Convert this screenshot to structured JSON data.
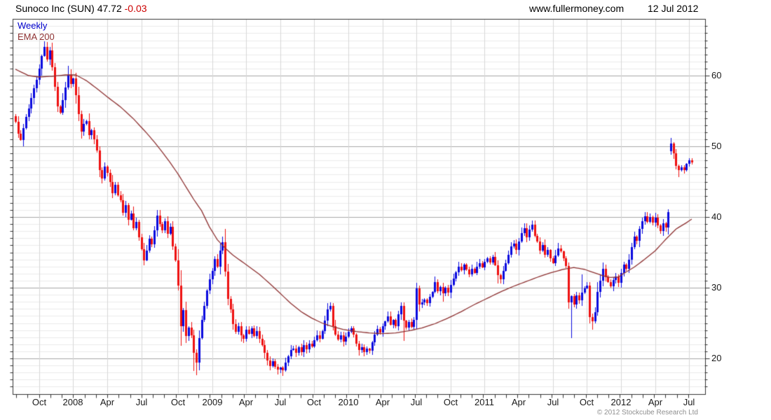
{
  "header": {
    "title": "Sunoco Inc (SUN) 47.72",
    "change": "-0.03",
    "website": "www.fullermoney.com",
    "date": "12 Jul 2012"
  },
  "legend": {
    "timeframe": "Weekly",
    "overlay": "EMA 200"
  },
  "footer": {
    "copyright": "© 2012 Stockcube Research Ltd"
  },
  "chart_data": {
    "type": "candlestick",
    "title": "Sunoco Inc (SUN) weekly candles with 200-period EMA",
    "instrument": "Sunoco Inc (SUN)",
    "interval": "weekly",
    "last_price": 47.72,
    "last_change": -0.03,
    "x_axis": {
      "start_week": "week of 30 Jul 2007",
      "weeks_total": 259,
      "labels": [
        "Oct",
        "2008",
        "Apr",
        "Jul",
        "Oct",
        "2009",
        "Apr",
        "Jul",
        "Oct",
        "2010",
        "Apr",
        "Jul",
        "Oct",
        "2011",
        "Apr",
        "Jul",
        "Oct",
        "2012",
        "Apr",
        "Jul"
      ],
      "label_week_indices": [
        9,
        22,
        35,
        48,
        62,
        75,
        88,
        101,
        114,
        127,
        140,
        153,
        166,
        179,
        192,
        205,
        218,
        231,
        244,
        257
      ]
    },
    "y_axis": {
      "ticks": [
        20,
        30,
        40,
        50,
        60
      ],
      "minor_tick_step": 1,
      "ylim": [
        15,
        68
      ],
      "side": "right",
      "grid": true
    },
    "series": {
      "name": "SUN weekly close",
      "first_open": 54.3,
      "closes": [
        53.5,
        51.8,
        50.9,
        52.6,
        54.2,
        55.3,
        56.8,
        58.2,
        59.4,
        61.0,
        62.8,
        64.1,
        62.3,
        63.6,
        61.2,
        58.4,
        55.6,
        54.8,
        56.5,
        58.3,
        60.1,
        58.8,
        59.6,
        57.2,
        54.6,
        52.1,
        53.2,
        53.6,
        51.6,
        52.3,
        51.0,
        49.4,
        46.6,
        45.4,
        47.1,
        46.2,
        45.0,
        43.4,
        44.6,
        43.1,
        42.4,
        40.6,
        41.7,
        39.6,
        40.5,
        38.4,
        39.3,
        37.1,
        35.4,
        33.9,
        35.2,
        36.9,
        36.1,
        38.1,
        40.2,
        39.0,
        38.1,
        39.4,
        37.6,
        38.6,
        35.8,
        33.9,
        30.3,
        24.6,
        26.8,
        23.2,
        24.4,
        23.3,
        20.8,
        19.4,
        22.9,
        25.4,
        27.4,
        29.6,
        31.2,
        32.4,
        34.1,
        33.0,
        35.2,
        36.4,
        32.3,
        28.4,
        26.9,
        24.9,
        23.8,
        24.6,
        23.3,
        22.8,
        24.1,
        23.5,
        24.3,
        23.2,
        23.9,
        22.8,
        21.9,
        20.8,
        19.7,
        18.9,
        19.6,
        18.8,
        18.4,
        18.7,
        18.3,
        19.4,
        20.3,
        21.2,
        21.4,
        20.8,
        21.6,
        20.9,
        21.9,
        21.3,
        22.1,
        21.7,
        22.6,
        23.3,
        22.8,
        23.9,
        25.3,
        26.9,
        27.4,
        24.6,
        23.4,
        22.7,
        23.3,
        22.4,
        23.1,
        23.8,
        24.3,
        23.4,
        22.1,
        21.2,
        21.6,
        20.9,
        21.4,
        21.1,
        22.3,
        23.4,
        24.2,
        23.7,
        24.6,
        25.2,
        25.9,
        24.8,
        25.4,
        24.6,
        26.2,
        27.4,
        25.3,
        24.4,
        25.1,
        24.5,
        25.4,
        29.9,
        27.6,
        27.9,
        28.3,
        27.8,
        28.7,
        29.4,
        30.8,
        29.5,
        30.1,
        29.2,
        30.0,
        29.3,
        30.4,
        31.3,
        32.2,
        33.0,
        32.5,
        33.3,
        32.6,
        31.9,
        32.7,
        32.1,
        33.0,
        33.5,
        32.9,
        33.7,
        34.2,
        33.6,
        34.4,
        33.2,
        31.8,
        31.2,
        32.4,
        33.5,
        34.7,
        35.8,
        36.2,
        35.3,
        36.5,
        37.7,
        38.4,
        37.1,
        38.2,
        38.9,
        37.3,
        36.5,
        35.2,
        36.0,
        34.7,
        35.3,
        34.2,
        33.5,
        34.6,
        35.5,
        35.1,
        34.2,
        33.1,
        27.9,
        28.8,
        27.6,
        28.9,
        28.2,
        29.3,
        29.9,
        30.3,
        25.8,
        25.2,
        26.5,
        29.4,
        31.0,
        32.7,
        31.5,
        30.8,
        30.2,
        31.1,
        31.6,
        30.7,
        32.1,
        33.3,
        32.7,
        34.0,
        35.7,
        37.2,
        36.6,
        38.3,
        39.4,
        40.1,
        39.3,
        40.0,
        39.2,
        39.9,
        38.8,
        38.0,
        39.1,
        38.5,
        40.7,
        50.4,
        49.0,
        47.2,
        46.6,
        47.0,
        46.6,
        47.5,
        48.0,
        47.72
      ],
      "overrides": {
        "11": {
          "h": 64.9
        },
        "20": {
          "h": 61.4
        },
        "54": {
          "h": 41.0
        },
        "63": {
          "l": 21.8
        },
        "68": {
          "l": 18.2
        },
        "69": {
          "l": 17.6
        },
        "79": {
          "h": 37.2
        },
        "80": {
          "h": 38.3
        },
        "86": {
          "l": 22.4
        },
        "97": {
          "l": 18.3
        },
        "100": {
          "l": 17.7
        },
        "102": {
          "l": 17.5
        },
        "120": {
          "h": 27.9
        },
        "131": {
          "l": 20.4
        },
        "142": {
          "h": 26.6
        },
        "147": {
          "h": 27.9
        },
        "148": {
          "l": 22.5
        },
        "153": {
          "h": 30.7
        },
        "160": {
          "h": 31.6
        },
        "163": {
          "l": 28.0
        },
        "184": {
          "l": 30.6
        },
        "190": {
          "h": 36.7
        },
        "194": {
          "h": 39.1
        },
        "197": {
          "h": 39.5
        },
        "207": {
          "h": 36.3
        },
        "211": {
          "l": 27.0
        },
        "212": {
          "l": 22.9
        },
        "216": {
          "h": 31.9
        },
        "219": {
          "l": 25.0
        },
        "220": {
          "l": 24.1
        },
        "224": {
          "h": 33.6
        },
        "250": {
          "o": 49.3,
          "h": 51.2,
          "l": 48.8
        },
        "253": {
          "l": 45.6
        },
        "258": {
          "h": 48.3,
          "l": 47.4
        }
      }
    },
    "ema": {
      "label": "EMA 200",
      "anchors": [
        [
          0,
          60.9
        ],
        [
          5,
          60.0
        ],
        [
          9,
          59.8
        ],
        [
          14,
          59.9
        ],
        [
          19,
          60.1
        ],
        [
          23,
          60.1
        ],
        [
          27,
          59.3
        ],
        [
          31,
          58.2
        ],
        [
          35,
          57.0
        ],
        [
          40,
          55.6
        ],
        [
          45,
          53.9
        ],
        [
          50,
          51.9
        ],
        [
          53,
          50.6
        ],
        [
          56,
          49.2
        ],
        [
          59,
          47.7
        ],
        [
          62,
          46.1
        ],
        [
          65,
          44.3
        ],
        [
          68,
          42.5
        ],
        [
          71,
          40.9
        ],
        [
          74,
          38.6
        ],
        [
          77,
          36.8
        ],
        [
          80,
          35.6
        ],
        [
          83,
          34.6
        ],
        [
          86,
          33.8
        ],
        [
          89,
          33.0
        ],
        [
          93,
          31.9
        ],
        [
          97,
          30.6
        ],
        [
          101,
          29.2
        ],
        [
          105,
          27.8
        ],
        [
          109,
          26.6
        ],
        [
          113,
          25.7
        ],
        [
          117,
          25.0
        ],
        [
          121,
          24.5
        ],
        [
          125,
          24.1
        ],
        [
          130,
          23.8
        ],
        [
          135,
          23.6
        ],
        [
          140,
          23.5
        ],
        [
          145,
          23.6
        ],
        [
          150,
          23.9
        ],
        [
          155,
          24.3
        ],
        [
          160,
          24.9
        ],
        [
          165,
          25.7
        ],
        [
          170,
          26.6
        ],
        [
          175,
          27.6
        ],
        [
          180,
          28.5
        ],
        [
          185,
          29.4
        ],
        [
          190,
          30.2
        ],
        [
          195,
          30.9
        ],
        [
          200,
          31.6
        ],
        [
          205,
          32.2
        ],
        [
          209,
          32.6
        ],
        [
          213,
          32.85
        ],
        [
          217,
          32.6
        ],
        [
          221,
          32.1
        ],
        [
          224,
          31.7
        ],
        [
          227,
          31.45
        ],
        [
          230,
          31.5
        ],
        [
          232,
          32.0
        ],
        [
          236,
          32.9
        ],
        [
          240,
          34.0
        ],
        [
          244,
          35.2
        ],
        [
          248,
          36.8
        ],
        [
          252,
          38.3
        ],
        [
          256,
          39.2
        ],
        [
          258,
          39.7
        ]
      ]
    },
    "colors": {
      "up": "#0a0ade",
      "down": "#ee1010",
      "ema": "#8e3232",
      "grid_minor": "#ececec",
      "grid_major": "#a8a8a8",
      "grid_vertical": "#d8d8d8",
      "axis": "#333333",
      "change_text": "#cc0000",
      "legend_timeframe": "#0000cc"
    },
    "layout_hints": {
      "legend_position": "top-left inside plot",
      "price_scale_side": "right"
    }
  }
}
